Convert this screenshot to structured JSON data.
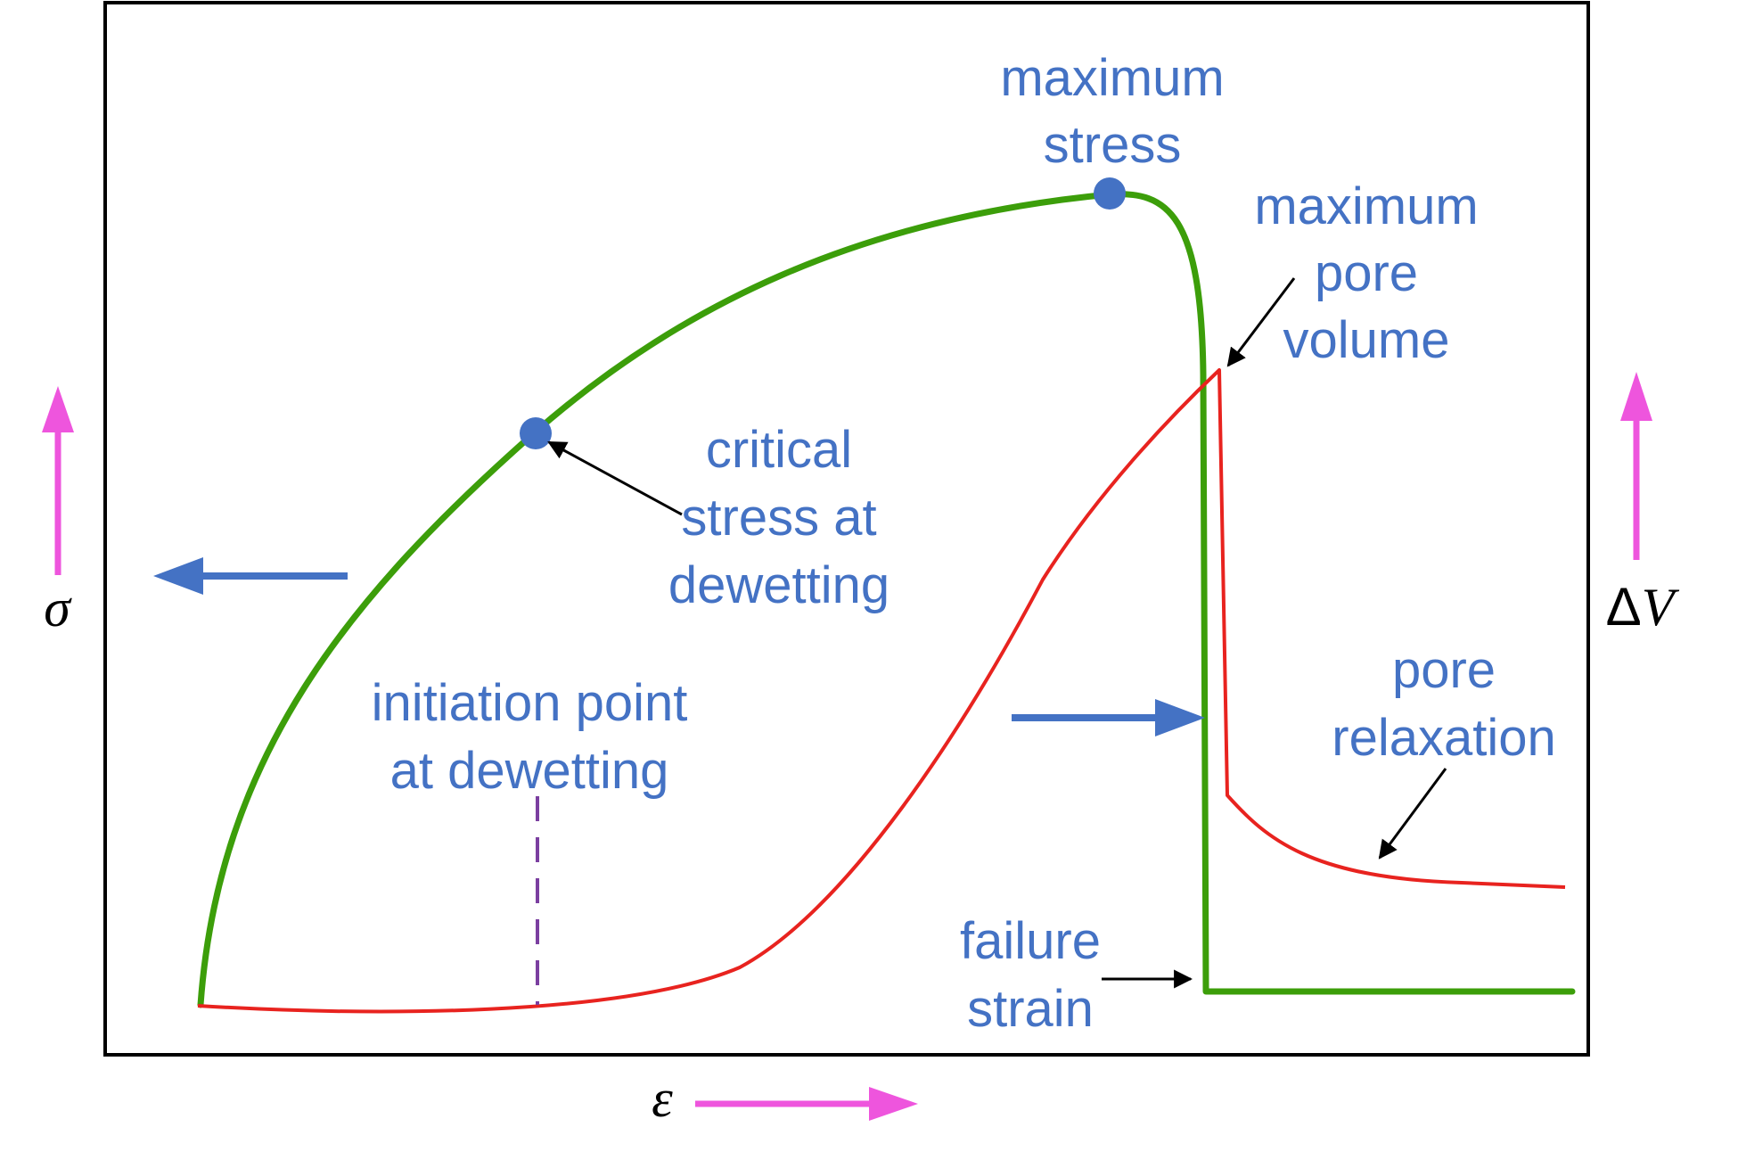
{
  "colors": {
    "stress_curve": "#3c9e0a",
    "pore_curve": "#e8231f",
    "marker": "#4472c4",
    "label": "#4472c4",
    "axis_arrow": "#ee55dd",
    "guide_line": "#7b3fa0",
    "frame": "#000000"
  },
  "labels": {
    "max_stress": [
      "maximum",
      "stress"
    ],
    "max_pore": [
      "maximum",
      "pore",
      "volume"
    ],
    "critical": [
      "critical",
      "stress at",
      "dewetting"
    ],
    "initiation": [
      "initiation point",
      "at dewetting"
    ],
    "relaxation": [
      "pore",
      "relaxation"
    ],
    "failure": [
      "failure",
      "strain"
    ]
  },
  "axes": {
    "stress_symbol": "σ",
    "strain_symbol": "ε",
    "volume_delta": "Δ",
    "volume_symbol": "V"
  },
  "icons": {
    "stress_axis": "arrow-up",
    "volume_axis": "arrow-up",
    "strain_axis": "arrow-right",
    "stress_curve_pointer": "arrow-left",
    "pore_curve_pointer": "arrow-right"
  }
}
